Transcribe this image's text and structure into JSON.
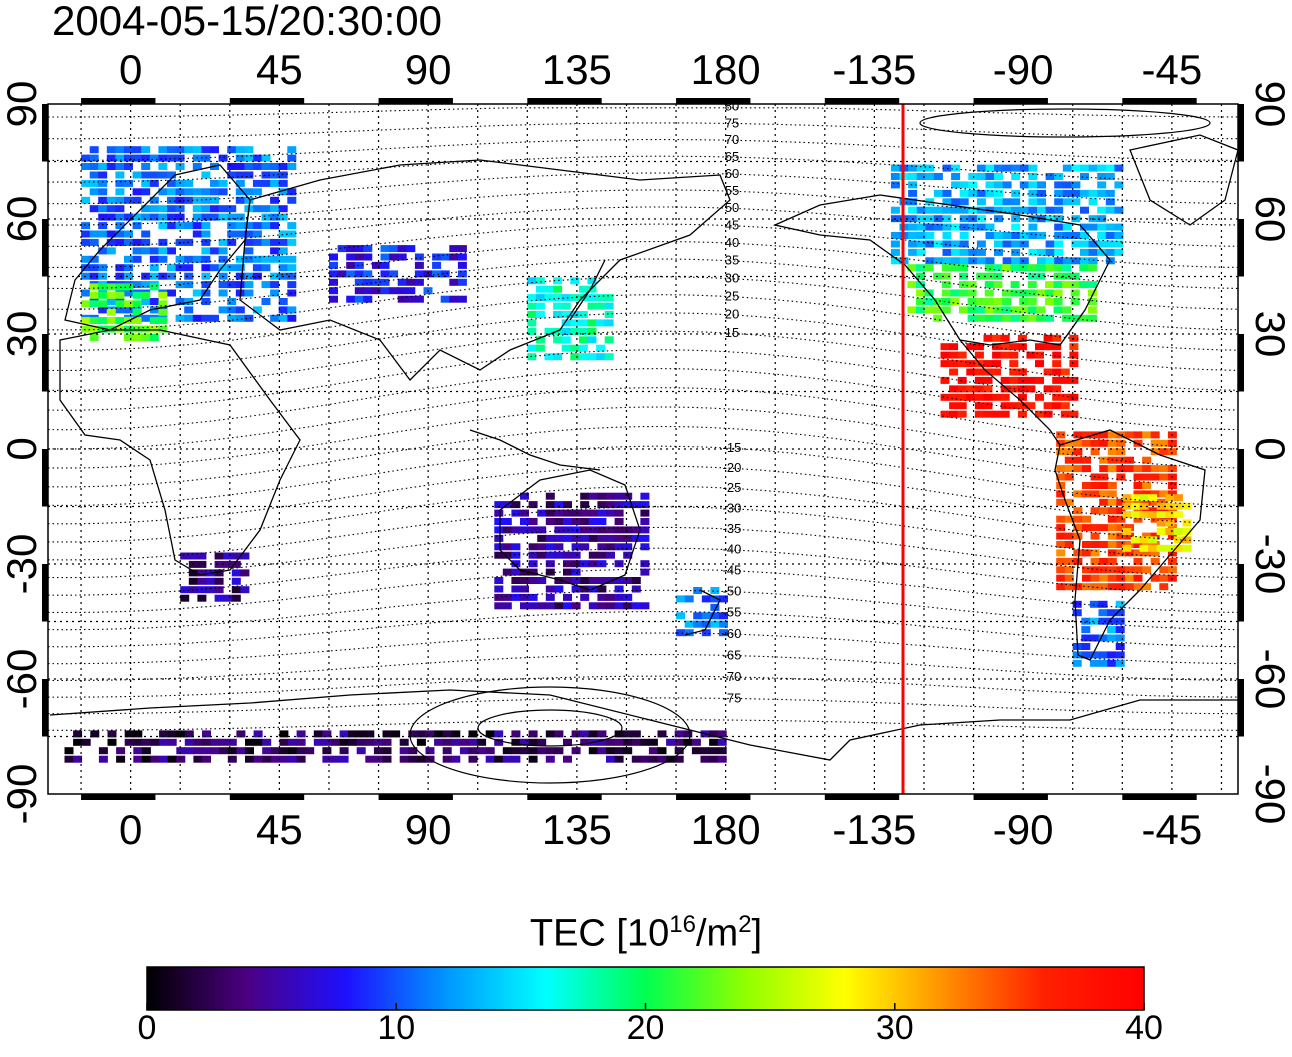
{
  "title": "2004-05-15/20:30:00",
  "top_lon_labels": [
    "0",
    "45",
    "90",
    "135",
    "180",
    "-135",
    "-90",
    "-45"
  ],
  "bottom_lon_labels": [
    "0",
    "45",
    "90",
    "135",
    "180",
    "-135",
    "-90",
    "-45"
  ],
  "lat_labels": [
    "90",
    "60",
    "30",
    "0",
    "-30",
    "-60",
    "-90"
  ],
  "contour_labels": [
    "80",
    "75",
    "70",
    "65",
    "60",
    "55",
    "50",
    "45",
    "40",
    "35",
    "30",
    "25",
    "20",
    "15",
    "-15",
    "-20",
    "-25",
    "-30",
    "-35",
    "-40",
    "-45",
    "-50",
    "-55",
    "-60",
    "-65",
    "-70",
    "-75"
  ],
  "colorbar": {
    "title_main": "TEC  [10",
    "title_sup1": "16",
    "title_mid": "/m",
    "title_sup2": "2",
    "title_end": "]",
    "min": 0,
    "max": 40,
    "ticks": [
      "0",
      "10",
      "20",
      "30",
      "40"
    ],
    "colors": [
      "#000000",
      "#4b0082",
      "#1e10ff",
      "#0096ff",
      "#00ffff",
      "#00ff50",
      "#90ff00",
      "#ffff00",
      "#ff9000",
      "#ff2000",
      "#ff0000"
    ]
  },
  "colors": {
    "terminator": "#ff0000",
    "coast": "#000000"
  },
  "terminator_lon": -126,
  "chart_data": {
    "type": "heatmap",
    "x_range": [
      -25,
      335
    ],
    "y_range": [
      -90,
      90
    ],
    "value_range": [
      0,
      40
    ],
    "regions": [
      {
        "lon": [
          -15,
          50
        ],
        "lat": [
          35,
          80
        ],
        "tec": 11
      },
      {
        "lon": [
          -15,
          10
        ],
        "lat": [
          30,
          45
        ],
        "tec": 22
      },
      {
        "lon": [
          60,
          100
        ],
        "lat": [
          40,
          55
        ],
        "tec": 8
      },
      {
        "lon": [
          120,
          145
        ],
        "lat": [
          25,
          45
        ],
        "tec": 17
      },
      {
        "lon": [
          230,
          300
        ],
        "lat": [
          50,
          75
        ],
        "tec": 13
      },
      {
        "lon": [
          235,
          290
        ],
        "lat": [
          35,
          50
        ],
        "tec": 21
      },
      {
        "lon": [
          245,
          285
        ],
        "lat": [
          10,
          30
        ],
        "tec": 38
      },
      {
        "lon": [
          280,
          315
        ],
        "lat": [
          -35,
          5
        ],
        "tec": 35
      },
      {
        "lon": [
          300,
          320
        ],
        "lat": [
          -25,
          -10
        ],
        "tec": 29
      },
      {
        "lon": [
          285,
          300
        ],
        "lat": [
          -55,
          -38
        ],
        "tec": 11
      },
      {
        "lon": [
          15,
          35
        ],
        "lat": [
          -38,
          -25
        ],
        "tec": 4
      },
      {
        "lon": [
          110,
          155
        ],
        "lat": [
          -40,
          -10
        ],
        "tec": 5
      },
      {
        "lon": [
          165,
          180
        ],
        "lat": [
          -47,
          -35
        ],
        "tec": 11
      },
      {
        "lon": [
          -20,
          180
        ],
        "lat": [
          -80,
          -72
        ],
        "tec": 3
      }
    ]
  }
}
